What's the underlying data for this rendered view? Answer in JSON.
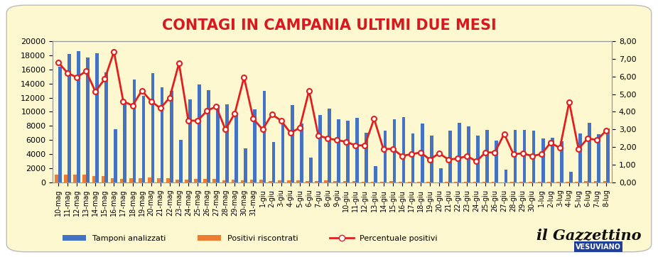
{
  "chart_data": {
    "type": "bar",
    "title": "CONTAGI IN CAMPANIA ULTIMI DUE MESI",
    "categories": [
      "10-mag",
      "11-mag",
      "12-mag",
      "13-mag",
      "14-mag",
      "15-mag",
      "16-mag",
      "17-mag",
      "18-mag",
      "19-mag",
      "20-mag",
      "21-mag",
      "22-mag",
      "23-mag",
      "24-mag",
      "25-mag",
      "26-mag",
      "27-mag",
      "28-mag",
      "29-mag",
      "30-mag",
      "31-mag",
      "1-giu",
      "2-giu",
      "3-giu",
      "4-giu",
      "5-giu",
      "6-giu",
      "7-giu",
      "8-giu",
      "9-giu",
      "10-giu",
      "11-giu",
      "12-giu",
      "13-giu",
      "14-giu",
      "15-giu",
      "16-giu",
      "17-giu",
      "18-giu",
      "19-giu",
      "20-giu",
      "21-giu",
      "22-giu",
      "23-giu",
      "24-giu",
      "25-giu",
      "26-giu",
      "27-giu",
      "28-giu",
      "29-giu",
      "30-giu",
      "1-lug",
      "2-lug",
      "3-lug",
      "4-lug",
      "5-lug",
      "6-lug",
      "7-lug",
      "8-lug"
    ],
    "series": [
      {
        "name": "Tamponi analizzati",
        "type": "bar",
        "color": "#4472c4",
        "values": [
          16400,
          18200,
          18600,
          17700,
          18300,
          15600,
          7500,
          11200,
          14600,
          12300,
          15500,
          13500,
          13000,
          6000,
          11800,
          13900,
          13100,
          11000,
          11100,
          9500,
          4800,
          10300,
          13000,
          5700,
          8600,
          11000,
          8300,
          3500,
          9500,
          10400,
          8900,
          8700,
          9100,
          7000,
          2300,
          7300,
          8900,
          9200,
          6900,
          8300,
          6600,
          2000,
          7300,
          8400,
          7900,
          6600,
          7400,
          5900,
          1800,
          7400,
          7400,
          7300,
          6200,
          6300,
          5800,
          1500,
          6900,
          8400,
          6800,
          7600
        ]
      },
      {
        "name": "Positivi riscontrati",
        "type": "bar",
        "color": "#ed7d31",
        "values": [
          1115,
          1128,
          1107,
          1115,
          942,
          913,
          555,
          515,
          635,
          640,
          713,
          567,
          624,
          405,
          413,
          487,
          531,
          473,
          333,
          371,
          286,
          371,
          390,
          219,
          301,
          308,
          257,
          182,
          252,
          260,
          214,
          200,
          191,
          147,
          83,
          139,
          169,
          138,
          110,
          141,
          86,
          33,
          95,
          113,
          119,
          79,
          126,
          100,
          50,
          118,
          122,
          110,
          99,
          142,
          113,
          68,
          131,
          210,
          163,
          224
        ]
      },
      {
        "name": "Percentuale positivi",
        "type": "line",
        "axis": "y2",
        "color": "#e02020",
        "marker": "o",
        "line_style": "solid",
        "values": [
          6.8,
          6.2,
          5.95,
          6.3,
          5.15,
          5.85,
          7.4,
          4.6,
          4.35,
          5.2,
          4.6,
          4.2,
          4.8,
          6.75,
          3.5,
          3.5,
          4.05,
          4.3,
          3.0,
          3.9,
          5.95,
          3.6,
          3.0,
          3.85,
          3.5,
          2.8,
          3.1,
          5.2,
          2.65,
          2.5,
          2.4,
          2.3,
          2.1,
          2.1,
          3.6,
          1.9,
          1.9,
          1.5,
          1.6,
          1.7,
          1.3,
          1.65,
          1.3,
          1.35,
          1.5,
          1.2,
          1.7,
          1.7,
          2.75,
          1.6,
          1.65,
          1.5,
          1.6,
          2.25,
          1.95,
          4.55,
          1.9,
          2.5,
          2.4,
          2.95
        ]
      }
    ],
    "ylim": [
      0,
      20000
    ],
    "yticks": [
      0,
      2000,
      4000,
      6000,
      8000,
      10000,
      12000,
      14000,
      16000,
      18000,
      20000
    ],
    "y2lim": [
      0,
      8
    ],
    "y2ticks": [
      {
        "value": 0,
        "label": "0,00"
      },
      {
        "value": 1,
        "label": "1,00"
      },
      {
        "value": 2,
        "label": "2,00"
      },
      {
        "value": 3,
        "label": "3,00"
      },
      {
        "value": 4,
        "label": "4,00"
      },
      {
        "value": 5,
        "label": "5,00"
      },
      {
        "value": 6,
        "label": "6,00"
      },
      {
        "value": 7,
        "label": "7,00"
      },
      {
        "value": 8,
        "label": "8,00"
      }
    ],
    "grid": false,
    "legend": "lower center",
    "annotations": [
      "il Gazzettino",
      "VESUVIANO"
    ]
  }
}
